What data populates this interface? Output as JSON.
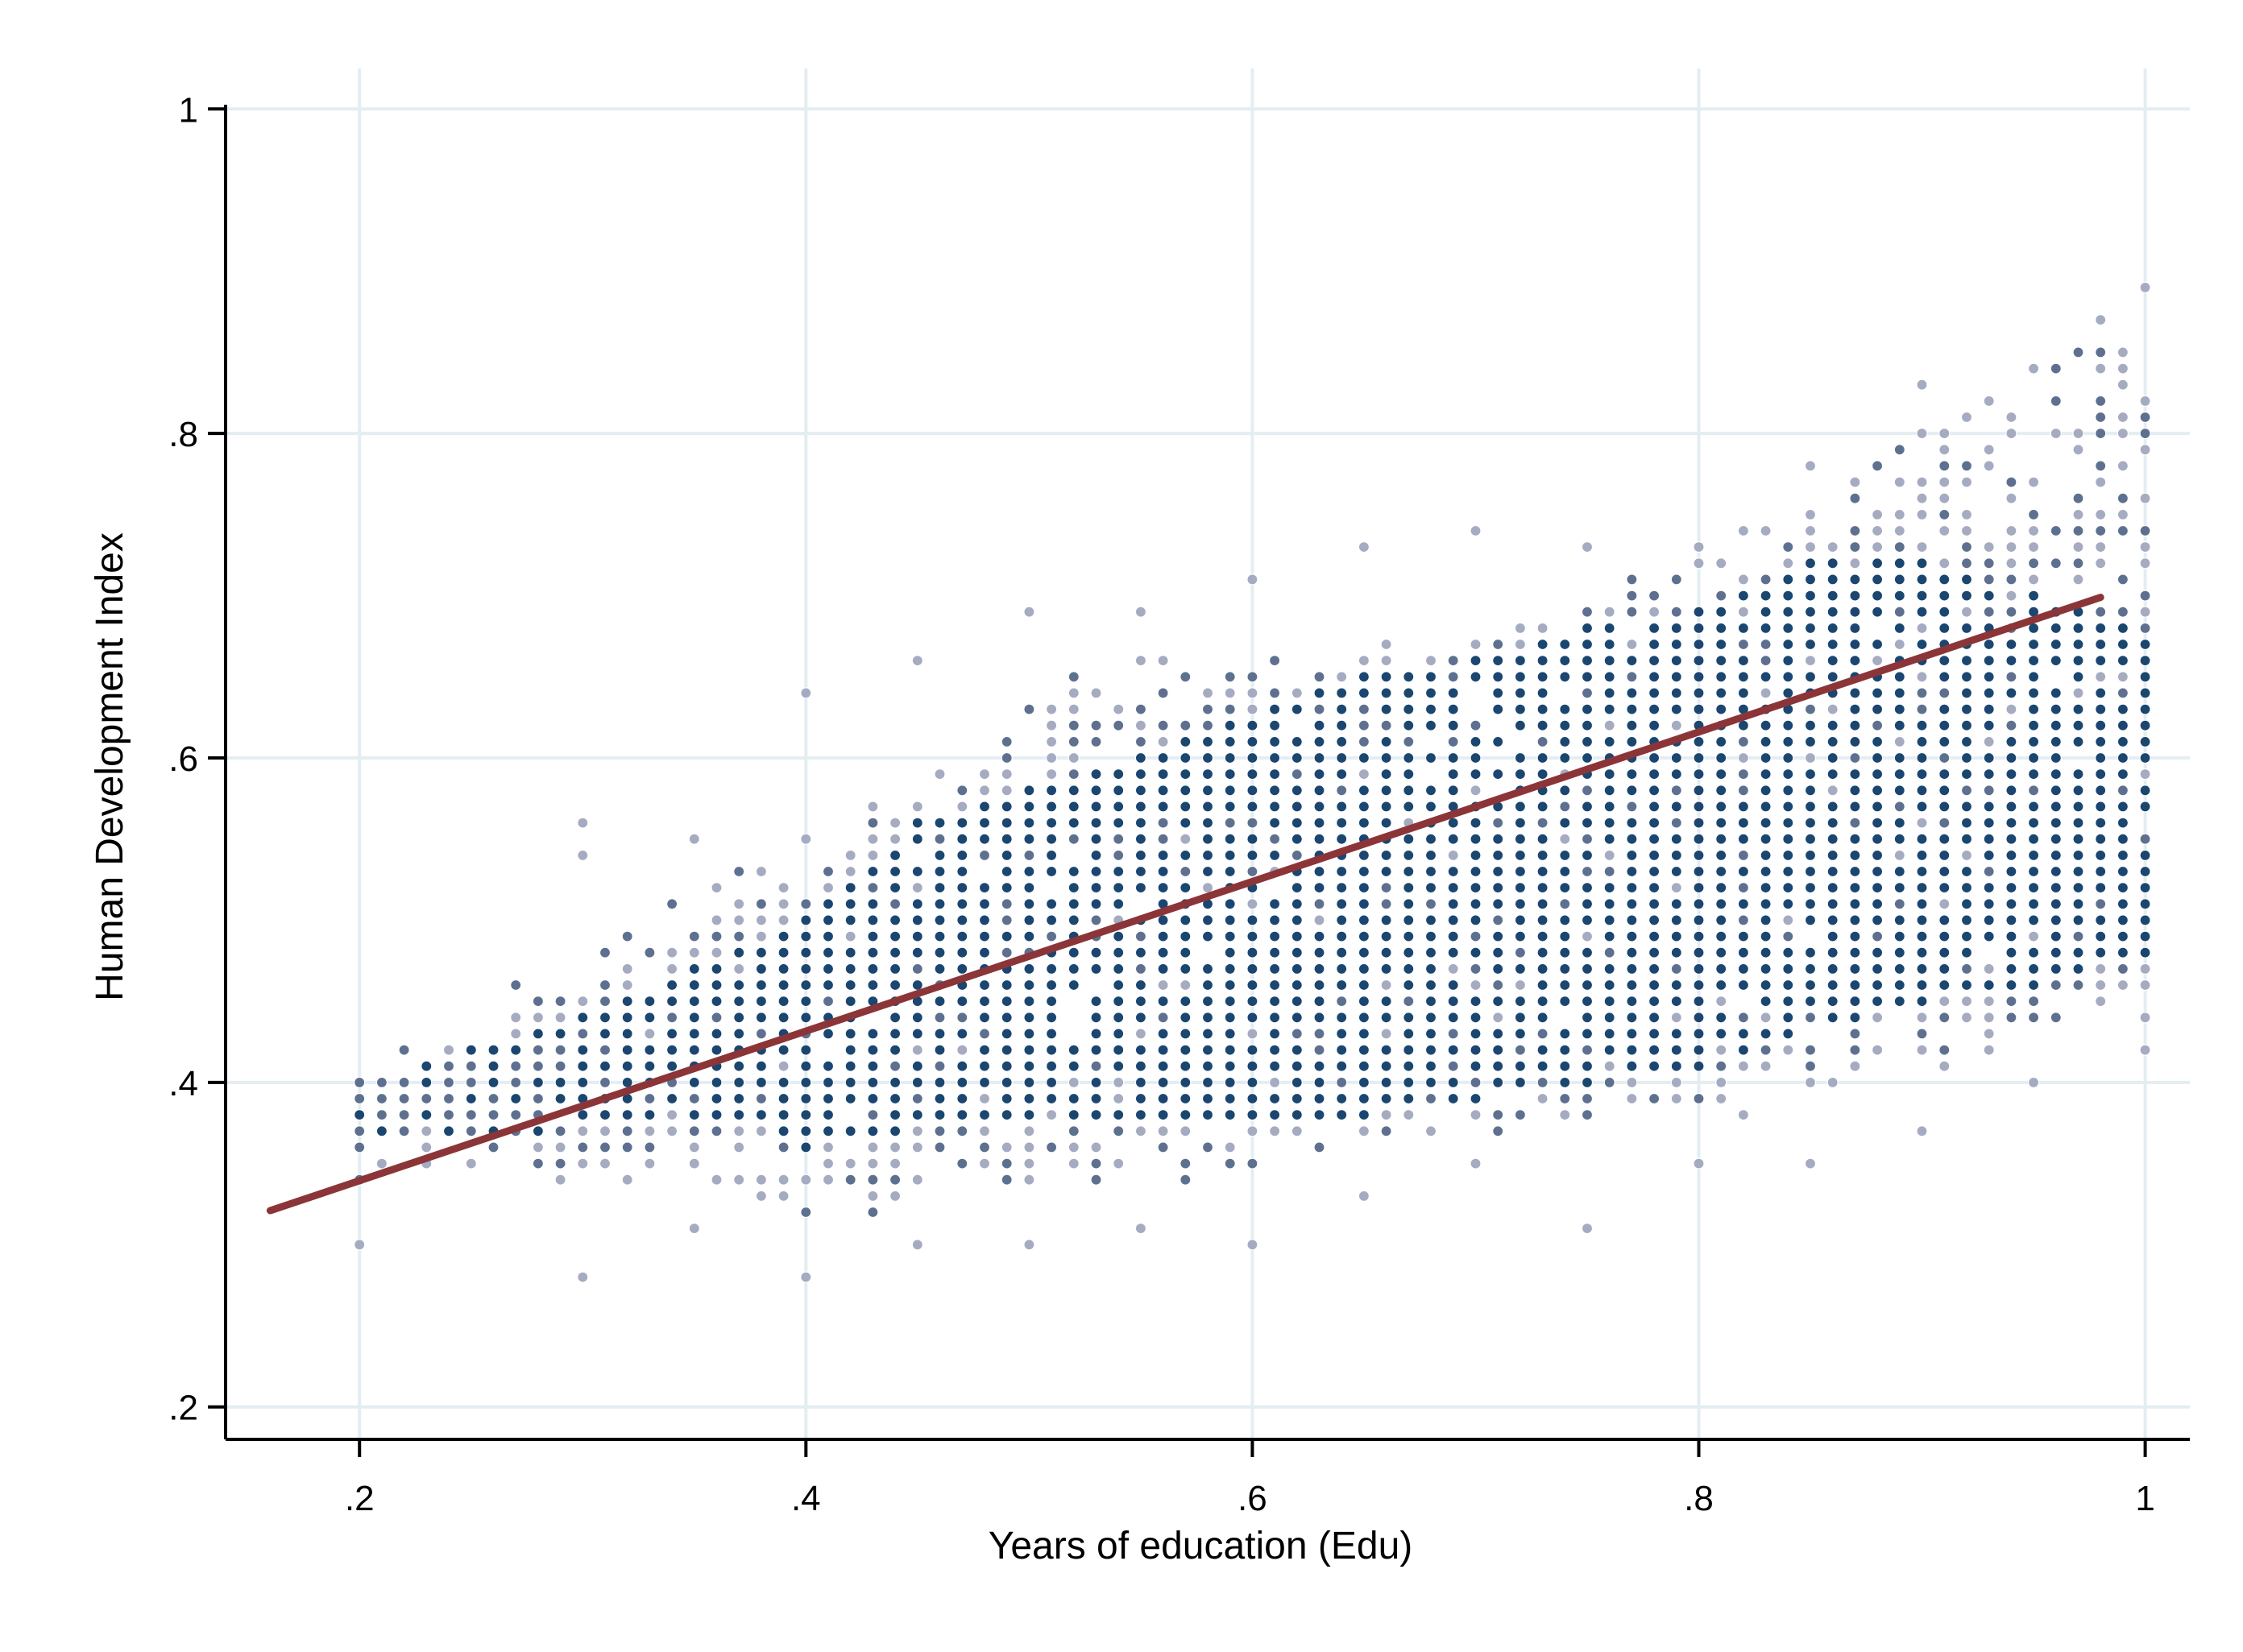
{
  "chart_data": {
    "type": "scatter",
    "xlabel": "Years of education (Edu)",
    "ylabel": "Human Development Index",
    "xlim": [
      0.14,
      1.02
    ],
    "ylim": [
      0.18,
      1.02
    ],
    "x_ticks": [
      0.2,
      0.4,
      0.6,
      0.8,
      1.0
    ],
    "x_tick_labels": [
      ".2",
      ".4",
      ".6",
      ".8",
      "1"
    ],
    "y_ticks": [
      0.2,
      0.4,
      0.6,
      0.8,
      1.0
    ],
    "y_tick_labels": [
      ".2",
      ".4",
      ".6",
      ".8",
      "1"
    ],
    "grid": true,
    "legend": "none",
    "point_grid_step": 0.01,
    "density_bands": [
      {
        "x": 0.2,
        "core": [
          0.36,
          0.4
        ],
        "spread": [
          0.34,
          0.41
        ],
        "outliers": [
          0.3
        ]
      },
      {
        "x": 0.25,
        "core": [
          0.37,
          0.42
        ],
        "spread": [
          0.34,
          0.45
        ],
        "outliers": []
      },
      {
        "x": 0.3,
        "core": [
          0.37,
          0.44
        ],
        "spread": [
          0.33,
          0.48
        ],
        "outliers": [
          0.28,
          0.54,
          0.56
        ]
      },
      {
        "x": 0.35,
        "core": [
          0.38,
          0.47
        ],
        "spread": [
          0.33,
          0.52
        ],
        "outliers": [
          0.31,
          0.55
        ]
      },
      {
        "x": 0.4,
        "core": [
          0.36,
          0.5
        ],
        "spread": [
          0.32,
          0.55
        ],
        "outliers": [
          0.28,
          0.64
        ]
      },
      {
        "x": 0.45,
        "core": [
          0.37,
          0.56
        ],
        "spread": [
          0.32,
          0.6
        ],
        "outliers": [
          0.3,
          0.66
        ]
      },
      {
        "x": 0.5,
        "core": [
          0.38,
          0.58
        ],
        "spread": [
          0.34,
          0.64
        ],
        "outliers": [
          0.3,
          0.69
        ]
      },
      {
        "x": 0.55,
        "core": [
          0.38,
          0.6
        ],
        "spread": [
          0.34,
          0.66
        ],
        "outliers": [
          0.31,
          0.69
        ]
      },
      {
        "x": 0.6,
        "core": [
          0.38,
          0.63
        ],
        "spread": [
          0.35,
          0.66
        ],
        "outliers": [
          0.3,
          0.71
        ]
      },
      {
        "x": 0.65,
        "core": [
          0.38,
          0.65
        ],
        "spread": [
          0.36,
          0.67
        ],
        "outliers": [
          0.33,
          0.73
        ]
      },
      {
        "x": 0.7,
        "core": [
          0.39,
          0.66
        ],
        "spread": [
          0.36,
          0.68
        ],
        "outliers": [
          0.35,
          0.74
        ]
      },
      {
        "x": 0.75,
        "core": [
          0.4,
          0.68
        ],
        "spread": [
          0.37,
          0.7
        ],
        "outliers": [
          0.31,
          0.73
        ]
      },
      {
        "x": 0.8,
        "core": [
          0.41,
          0.69
        ],
        "spread": [
          0.38,
          0.72
        ],
        "outliers": [
          0.35,
          0.73
        ]
      },
      {
        "x": 0.85,
        "core": [
          0.43,
          0.72
        ],
        "spread": [
          0.39,
          0.76
        ],
        "outliers": [
          0.35,
          0.78
        ]
      },
      {
        "x": 0.9,
        "core": [
          0.45,
          0.72
        ],
        "spread": [
          0.4,
          0.8
        ],
        "outliers": [
          0.37,
          0.83
        ]
      },
      {
        "x": 0.95,
        "core": [
          0.46,
          0.7
        ],
        "spread": [
          0.43,
          0.83
        ],
        "outliers": [
          0.4,
          0.84
        ]
      },
      {
        "x": 1.0,
        "core": [
          0.48,
          0.68
        ],
        "spread": [
          0.44,
          0.89
        ],
        "outliers": [
          0.42,
          0.89
        ]
      }
    ],
    "fit_line": {
      "x": [
        0.16,
        0.98
      ],
      "y": [
        0.321,
        0.699
      ]
    },
    "colors": {
      "dense": "#1a4670",
      "medium": "#5e7090",
      "sparse": "#a5abc1",
      "fit_line": "#8b3538",
      "grid": "#e4edf1",
      "axis": "#000000"
    }
  }
}
